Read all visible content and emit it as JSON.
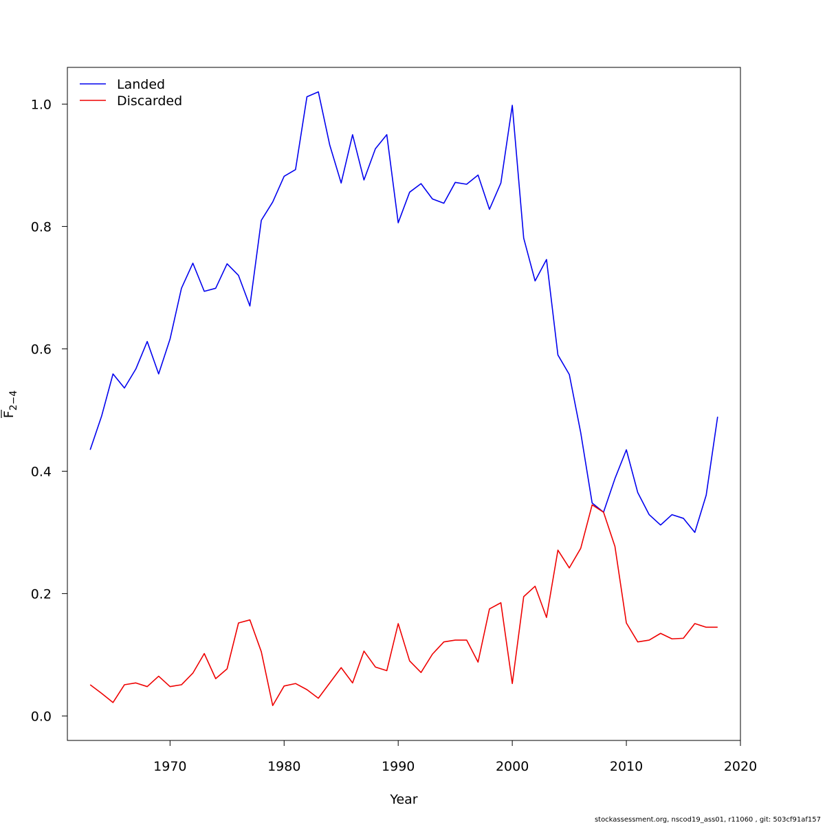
{
  "chart_data": {
    "type": "line",
    "xlabel": "Year",
    "ylabel_main": "F",
    "ylabel_sub": "2−4",
    "xlim": [
      1961,
      2020
    ],
    "ylim": [
      -0.04,
      1.06
    ],
    "x_ticks": [
      1970,
      1980,
      1990,
      2000,
      2010,
      2020
    ],
    "x_tick_labels": [
      "1970",
      "1980",
      "1990",
      "2000",
      "2010",
      "2020"
    ],
    "y_ticks": [
      0.0,
      0.2,
      0.4,
      0.6,
      0.8,
      1.0
    ],
    "y_tick_labels": [
      "0.0",
      "0.2",
      "0.4",
      "0.6",
      "0.8",
      "1.0"
    ],
    "grid": false,
    "legend_position": "top-left",
    "x": [
      1963,
      1964,
      1965,
      1966,
      1967,
      1968,
      1969,
      1970,
      1971,
      1972,
      1973,
      1974,
      1975,
      1976,
      1977,
      1978,
      1979,
      1980,
      1981,
      1982,
      1983,
      1984,
      1985,
      1986,
      1987,
      1988,
      1989,
      1990,
      1991,
      1992,
      1993,
      1994,
      1995,
      1996,
      1997,
      1998,
      1999,
      2000,
      2001,
      2002,
      2003,
      2004,
      2005,
      2006,
      2007,
      2008,
      2009,
      2010,
      2011,
      2012,
      2013,
      2014,
      2015,
      2016,
      2017,
      2018
    ],
    "series": [
      {
        "name": "Landed",
        "color": "#0000ee",
        "values": [
          0.435,
          0.49,
          0.559,
          0.536,
          0.567,
          0.612,
          0.559,
          0.616,
          0.699,
          0.74,
          0.694,
          0.699,
          0.739,
          0.72,
          0.67,
          0.81,
          0.84,
          0.882,
          0.893,
          1.012,
          1.02,
          0.933,
          0.871,
          0.95,
          0.876,
          0.927,
          0.95,
          0.806,
          0.856,
          0.87,
          0.845,
          0.838,
          0.872,
          0.869,
          0.884,
          0.828,
          0.871,
          0.998,
          0.781,
          0.711,
          0.746,
          0.59,
          0.558,
          0.463,
          0.348,
          0.333,
          0.388,
          0.435,
          0.365,
          0.329,
          0.312,
          0.329,
          0.323,
          0.3,
          0.361,
          0.489
        ]
      },
      {
        "name": "Discarded",
        "color": "#ee0000",
        "values": [
          0.051,
          0.037,
          0.022,
          0.051,
          0.054,
          0.048,
          0.065,
          0.048,
          0.051,
          0.07,
          0.102,
          0.061,
          0.077,
          0.152,
          0.157,
          0.105,
          0.017,
          0.049,
          0.053,
          0.043,
          0.029,
          0.054,
          0.079,
          0.054,
          0.106,
          0.08,
          0.074,
          0.151,
          0.09,
          0.071,
          0.101,
          0.121,
          0.124,
          0.124,
          0.088,
          0.175,
          0.185,
          0.053,
          0.195,
          0.212,
          0.161,
          0.271,
          0.242,
          0.274,
          0.345,
          0.333,
          0.277,
          0.152,
          0.121,
          0.124,
          0.135,
          0.126,
          0.127,
          0.151,
          0.145,
          0.145
        ]
      }
    ]
  },
  "footer": {
    "credit": "stockassessment.org, nscod19_ass01, r11060 , git: 503cf91af157"
  }
}
